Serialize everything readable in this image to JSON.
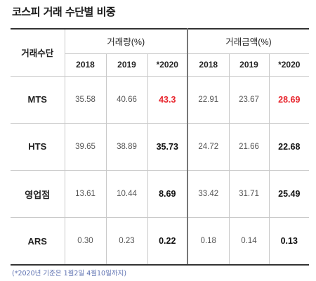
{
  "title": "코스피 거래 수단별 비중",
  "header": {
    "row_label": "거래수단",
    "group_volume": "거래량(%)",
    "group_amount": "거래금액(%)",
    "years": [
      "2018",
      "2019",
      "*2020"
    ]
  },
  "rows": [
    {
      "label": "MTS",
      "volume": [
        "35.58",
        "40.66",
        "43.3"
      ],
      "amount": [
        "22.91",
        "23.67",
        "28.69"
      ]
    },
    {
      "label": "HTS",
      "volume": [
        "39.65",
        "38.89",
        "35.73"
      ],
      "amount": [
        "24.72",
        "21.66",
        "22.68"
      ]
    },
    {
      "label": "영업점",
      "volume": [
        "13.61",
        "10.44",
        "8.69"
      ],
      "amount": [
        "33.42",
        "31.71",
        "25.49"
      ]
    },
    {
      "label": "ARS",
      "volume": [
        "0.30",
        "0.23",
        "0.22"
      ],
      "amount": [
        "0.18",
        "0.14",
        "0.13"
      ]
    }
  ],
  "footnote": "(*2020년 기준은 1월2일 4월10일까지)",
  "colors": {
    "highlight": "#e8262e",
    "footnote": "#5b6fb0"
  }
}
